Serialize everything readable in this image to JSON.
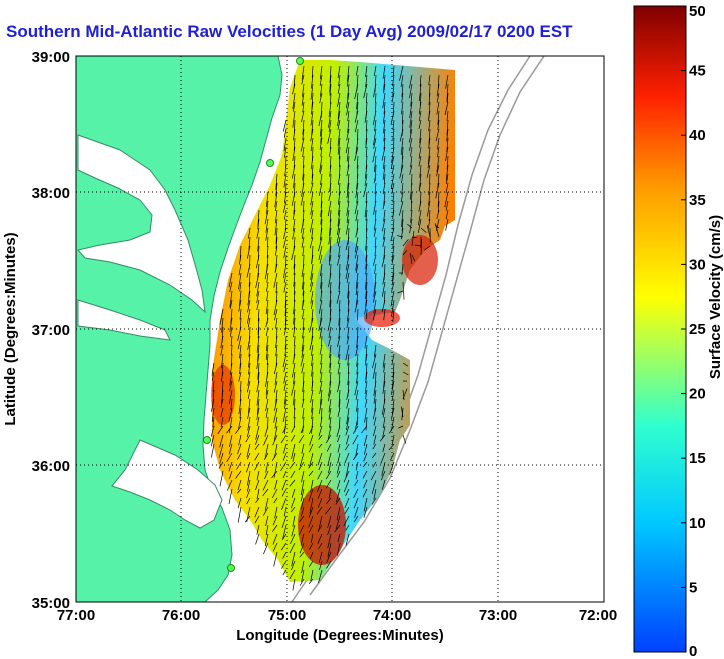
{
  "title": "Southern Mid-Atlantic Raw Velocities (1 Day Avg) 2009/02/17 0200 EST",
  "chart_data": {
    "type": "heatmap",
    "title": "Southern Mid-Atlantic Raw Velocities (1 Day Avg) 2009/02/17 0200 EST",
    "xlabel": "Longitude (Degrees:Minutes)",
    "ylabel": "Latitude (Degrees:Minutes)",
    "x_ticks": [
      "77:00",
      "76:00",
      "75:00",
      "74:00",
      "73:00",
      "72:00"
    ],
    "y_ticks": [
      "39:00",
      "38:00",
      "37:00",
      "36:00",
      "35:00"
    ],
    "xlim": [
      -77,
      -72
    ],
    "ylim": [
      35,
      39
    ],
    "grid": true,
    "colorbar": {
      "label": "Surface Velocity (cm/s)",
      "range": [
        0,
        50
      ],
      "ticks": [
        0,
        5,
        10,
        15,
        20,
        25,
        30,
        35,
        40,
        45,
        50
      ]
    }
  },
  "colors": {
    "land": "#55f2a8",
    "title": "#1f1fd6",
    "colormap": [
      "#0040ff",
      "#00c8ff",
      "#30ffcf",
      "#ffff00",
      "#ff9a00",
      "#ff2000",
      "#800000"
    ]
  }
}
